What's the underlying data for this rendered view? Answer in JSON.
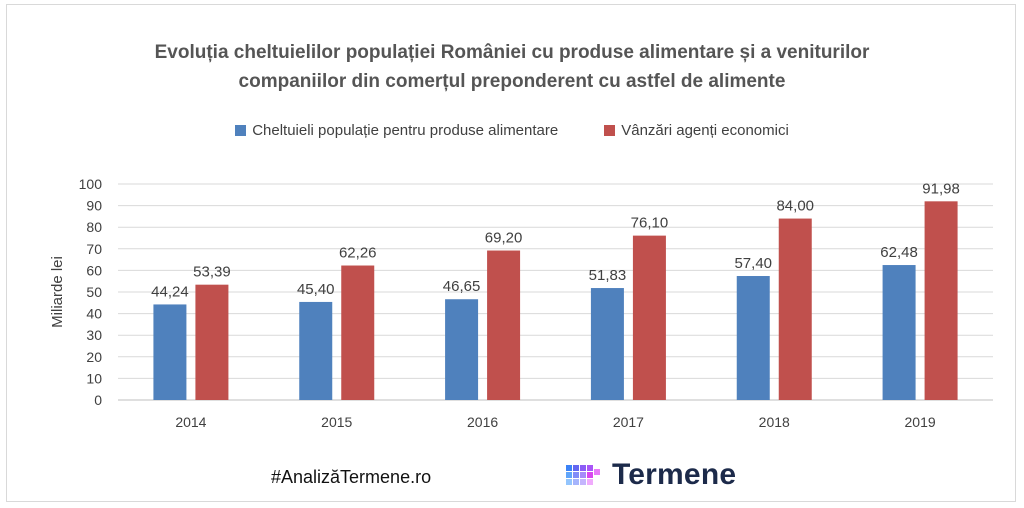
{
  "chart_data": {
    "type": "bar",
    "title_lines": [
      "Evoluția cheltuielilor populației României cu produse alimentare și a veniturilor",
      "companiilor din comerțul preponderent cu astfel de alimente"
    ],
    "ylabel": "Miliarde lei",
    "xlabel": "",
    "ylim": [
      0,
      100
    ],
    "yticks": [
      0,
      10,
      20,
      30,
      40,
      50,
      60,
      70,
      80,
      90,
      100
    ],
    "categories": [
      "2014",
      "2015",
      "2016",
      "2017",
      "2018",
      "2019"
    ],
    "series": [
      {
        "name": "Cheltuieli populație pentru produse alimentare",
        "color": "#4f81bd",
        "values": [
          44.24,
          45.4,
          46.65,
          51.83,
          57.4,
          62.48
        ],
        "labels": [
          "44,24",
          "45,40",
          "46,65",
          "51,83",
          "57,40",
          "62,48"
        ]
      },
      {
        "name": "Vânzări agenți economici",
        "color": "#c0504d",
        "values": [
          53.39,
          62.26,
          69.2,
          76.1,
          84.0,
          91.98
        ],
        "labels": [
          "53,39",
          "62,26",
          "69,20",
          "76,10",
          "84,00",
          "91,98"
        ]
      }
    ],
    "grid": true,
    "legend_position": "top"
  },
  "footer": {
    "hashtag": "#AnalizăTermene.ro",
    "brand": "Termene",
    "logo_icon": "cube-grid-logo-icon"
  }
}
